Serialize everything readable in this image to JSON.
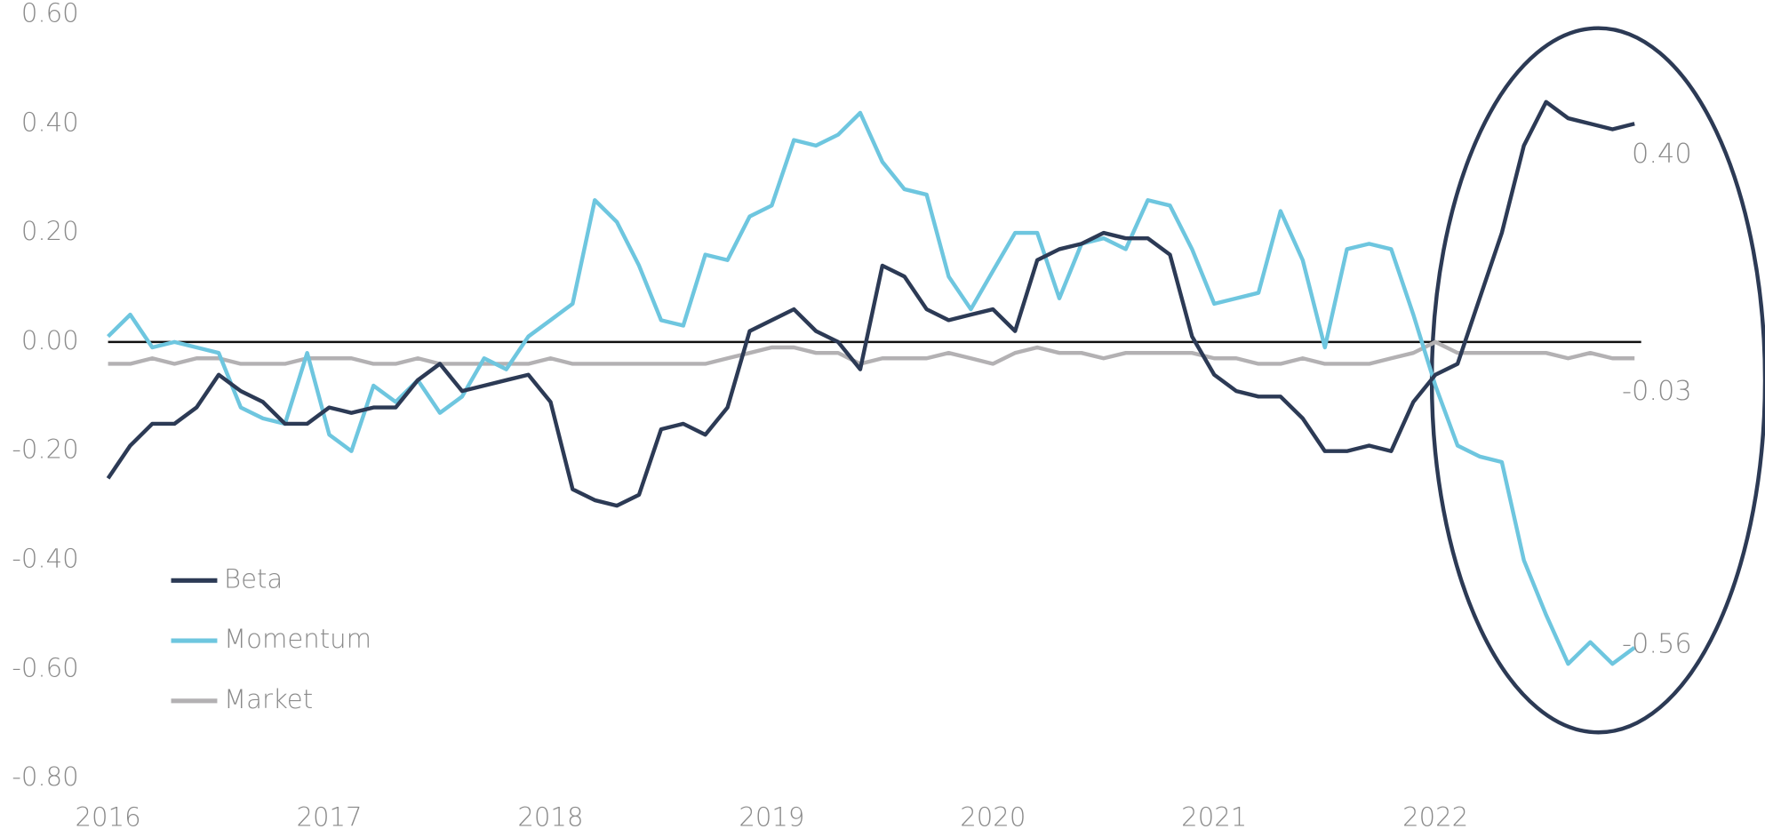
{
  "chart_data": {
    "type": "line",
    "x": [
      2016,
      2016.1,
      2016.2,
      2016.3,
      2016.4,
      2016.5,
      2016.6,
      2016.7,
      2016.8,
      2016.9,
      2017,
      2017.1,
      2017.2,
      2017.3,
      2017.4,
      2017.5,
      2017.6,
      2017.7,
      2017.8,
      2017.9,
      2018,
      2018.1,
      2018.2,
      2018.3,
      2018.4,
      2018.5,
      2018.6,
      2018.7,
      2018.8,
      2018.9,
      2019,
      2019.1,
      2019.2,
      2019.3,
      2019.4,
      2019.5,
      2019.6,
      2019.7,
      2019.8,
      2019.9,
      2020,
      2020.1,
      2020.2,
      2020.3,
      2020.4,
      2020.5,
      2020.6,
      2020.7,
      2020.8,
      2020.9,
      2021,
      2021.1,
      2021.2,
      2021.3,
      2021.4,
      2021.5,
      2021.6,
      2021.7,
      2021.8,
      2021.9,
      2022,
      2022.1,
      2022.2,
      2022.3,
      2022.4,
      2022.5,
      2022.6,
      2022.7,
      2022.8,
      2022.9
    ],
    "series": [
      {
        "name": "Beta",
        "color": "#2c3a55",
        "end_label": "0.40",
        "values": [
          -0.25,
          -0.19,
          -0.15,
          -0.15,
          -0.12,
          -0.06,
          -0.09,
          -0.11,
          -0.15,
          -0.15,
          -0.12,
          -0.13,
          -0.12,
          -0.12,
          -0.07,
          -0.04,
          -0.09,
          -0.08,
          -0.07,
          -0.06,
          -0.11,
          -0.27,
          -0.29,
          -0.3,
          -0.28,
          -0.16,
          -0.15,
          -0.17,
          -0.12,
          0.02,
          0.04,
          0.06,
          0.02,
          0,
          -0.05,
          0.14,
          0.12,
          0.06,
          0.04,
          0.05,
          0.06,
          0.02,
          0.15,
          0.17,
          0.18,
          0.2,
          0.19,
          0.19,
          0.16,
          0.01,
          -0.06,
          -0.09,
          -0.1,
          -0.1,
          -0.14,
          -0.2,
          -0.2,
          -0.19,
          -0.2,
          -0.11,
          -0.06,
          -0.04,
          0.08,
          0.2,
          0.36,
          0.44,
          0.41,
          0.4,
          0.39,
          0.4
        ]
      },
      {
        "name": "Momentum",
        "color": "#6ec6df",
        "end_label": "-0.56",
        "values": [
          0.01,
          0.05,
          -0.01,
          0,
          -0.01,
          -0.02,
          -0.12,
          -0.14,
          -0.15,
          -0.02,
          -0.17,
          -0.2,
          -0.08,
          -0.11,
          -0.07,
          -0.13,
          -0.1,
          -0.03,
          -0.05,
          0.01,
          0.04,
          0.07,
          0.26,
          0.22,
          0.14,
          0.04,
          0.03,
          0.16,
          0.15,
          0.23,
          0.25,
          0.37,
          0.36,
          0.38,
          0.42,
          0.33,
          0.28,
          0.27,
          0.12,
          0.06,
          0.13,
          0.2,
          0.2,
          0.08,
          0.18,
          0.19,
          0.17,
          0.26,
          0.25,
          0.17,
          0.07,
          0.08,
          0.09,
          0.24,
          0.15,
          -0.01,
          0.17,
          0.18,
          0.17,
          0.05,
          -0.08,
          -0.19,
          -0.21,
          -0.22,
          -0.4,
          -0.5,
          -0.59,
          -0.55,
          -0.59,
          -0.56
        ]
      },
      {
        "name": "Market",
        "color": "#b3b1b3",
        "end_label": "-0.03",
        "values": [
          -0.04,
          -0.04,
          -0.03,
          -0.04,
          -0.03,
          -0.03,
          -0.04,
          -0.04,
          -0.04,
          -0.03,
          -0.03,
          -0.03,
          -0.04,
          -0.04,
          -0.03,
          -0.04,
          -0.04,
          -0.04,
          -0.04,
          -0.04,
          -0.03,
          -0.04,
          -0.04,
          -0.04,
          -0.04,
          -0.04,
          -0.04,
          -0.04,
          -0.03,
          -0.02,
          -0.01,
          -0.01,
          -0.02,
          -0.02,
          -0.04,
          -0.03,
          -0.03,
          -0.03,
          -0.02,
          -0.03,
          -0.04,
          -0.02,
          -0.01,
          -0.02,
          -0.02,
          -0.03,
          -0.02,
          -0.02,
          -0.02,
          -0.02,
          -0.03,
          -0.03,
          -0.04,
          -0.04,
          -0.03,
          -0.04,
          -0.04,
          -0.04,
          -0.03,
          -0.02,
          0,
          -0.02,
          -0.02,
          -0.02,
          -0.02,
          -0.02,
          -0.03,
          -0.02,
          -0.03,
          -0.03
        ]
      }
    ],
    "xlim": [
      2016,
      2022.93
    ],
    "xticks": [
      2016,
      2017,
      2018,
      2019,
      2020,
      2021,
      2022
    ],
    "ylim": [
      -0.8,
      0.6
    ],
    "yticks": [
      {
        "value": 0.6,
        "label": "0.60"
      },
      {
        "value": 0.4,
        "label": "0.40"
      },
      {
        "value": 0.2,
        "label": "0.20"
      },
      {
        "value": 0,
        "label": "0.00"
      },
      {
        "value": -0.2,
        "label": "-0.20"
      },
      {
        "value": -0.4,
        "label": "-0.40"
      },
      {
        "value": -0.6,
        "label": "-0.60"
      },
      {
        "value": -0.8,
        "label": "-0.80"
      }
    ],
    "zero_line": true,
    "grid": false,
    "legend": "left"
  }
}
